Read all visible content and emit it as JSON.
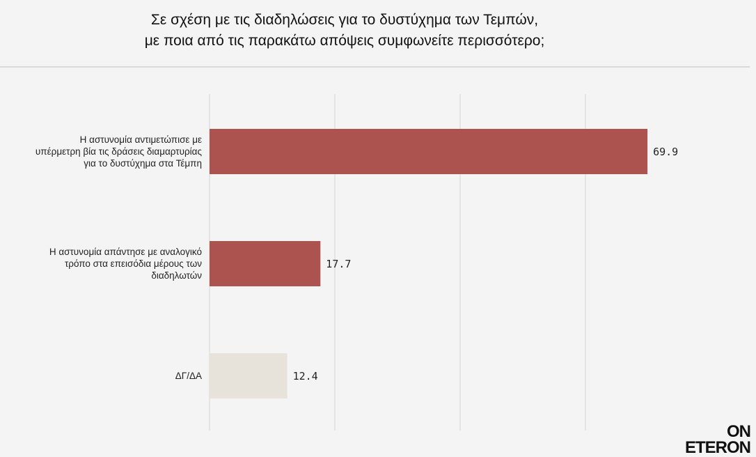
{
  "title": {
    "line1": "Σε σχέση με τις διαδηλώσεις για το δυστύχημα των Τεμπών,",
    "line2": "με ποια από τις παρακάτω απόψεις συμφωνείτε περισσότερο;"
  },
  "logo": {
    "line1": "ON",
    "line2": "ETERON"
  },
  "chart_data": {
    "type": "bar",
    "orientation": "horizontal",
    "categories": [
      [
        "Η αστυνομία αντιμετώπισε με",
        "υπέρμετρη βία τις δράσεις διαμαρτυρίας",
        "για το δυστύχημα στα Τέμπη"
      ],
      [
        "Η αστυνομία απάντησε με αναλογικό",
        "τρόπο στα επεισόδια μέρους των",
        "διαδηλωτών"
      ],
      [
        "ΔΓ/ΔΑ"
      ]
    ],
    "values": [
      69.9,
      17.7,
      12.4
    ],
    "value_labels": [
      "69.9",
      "17.7",
      "12.4"
    ],
    "colors": [
      "#ac5350",
      "#ac5350",
      "#e7e2da"
    ],
    "xlim": [
      0,
      80
    ],
    "grid": true,
    "gridlines_at": [
      0,
      20,
      40,
      60
    ],
    "legend": "none"
  }
}
